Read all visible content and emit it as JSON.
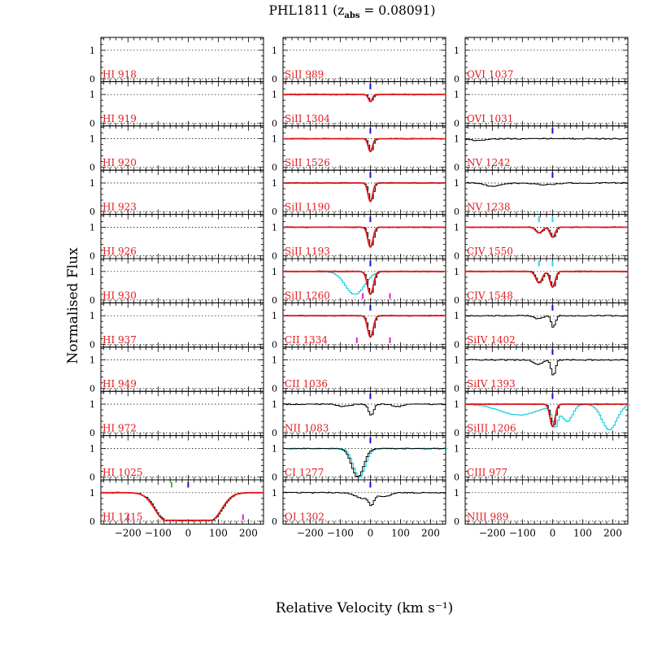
{
  "chart_data": {
    "type": "line",
    "title_prefix": "PHL1811 (z",
    "title_sub": "abs",
    "title_suffix": " = 0.08091)",
    "xlabel": "Relative Velocity (km s⁻¹)",
    "ylabel": "Normalised Flux",
    "xlim": [
      -290,
      250
    ],
    "ylim": [
      -0.1,
      1.45
    ],
    "x_ticks": [
      -200,
      -100,
      0,
      100,
      200
    ],
    "y_ticks": [
      0,
      1
    ],
    "colors": {
      "label": "#e41a1c",
      "model": "#e41a1c",
      "spectrum": "#000000",
      "blend": "#00c8d8",
      "marker_main": "#1414d2",
      "marker_alt": "#e020d0",
      "marker_green": "#20d020",
      "marker_cyan": "#20d8e8"
    },
    "panels": [
      [
        {
          "label": "HI 918",
          "spectrum": false
        },
        {
          "label": "HI 919",
          "spectrum": false
        },
        {
          "label": "HI 920",
          "spectrum": false
        },
        {
          "label": "HI 923",
          "spectrum": false
        },
        {
          "label": "HI 926",
          "spectrum": false
        },
        {
          "label": "HI 930",
          "spectrum": false
        },
        {
          "label": "HI 937",
          "spectrum": false
        },
        {
          "label": "HI 949",
          "spectrum": false
        },
        {
          "label": "HI 972",
          "spectrum": false
        },
        {
          "label": "HI 1025",
          "spectrum": false
        },
        {
          "label": "HI 1215",
          "spectrum": true,
          "model": true,
          "comps": [
            {
              "v": 0,
              "depth": 0.97,
              "width": 50,
              "flat": 75
            }
          ],
          "markers": [
            {
              "v": 0,
              "c": "main",
              "top": true
            },
            {
              "v": -55,
              "c": "green",
              "top": true
            },
            {
              "v": -200,
              "c": "alt",
              "top": false
            },
            {
              "v": 182,
              "c": "alt",
              "top": false
            }
          ]
        }
      ],
      [
        {
          "label": "SiII 989",
          "spectrum": false
        },
        {
          "label": "SiII 1304",
          "spectrum": true,
          "model": true,
          "comps": [
            {
              "v": 0,
              "depth": 0.25,
              "width": 9
            }
          ],
          "markers": [
            {
              "v": 0,
              "c": "main",
              "top": true
            }
          ]
        },
        {
          "label": "SiII 1526",
          "spectrum": true,
          "model": true,
          "comps": [
            {
              "v": 0,
              "depth": 0.45,
              "width": 10
            }
          ],
          "markers": [
            {
              "v": 0,
              "c": "main",
              "top": true
            }
          ]
        },
        {
          "label": "SiII 1190",
          "spectrum": true,
          "model": true,
          "comps": [
            {
              "v": 0,
              "depth": 0.65,
              "width": 11
            }
          ],
          "markers": [
            {
              "v": 0,
              "c": "main",
              "top": true
            }
          ]
        },
        {
          "label": "SiII 1193",
          "spectrum": true,
          "model": true,
          "comps": [
            {
              "v": 0,
              "depth": 0.7,
              "width": 12
            }
          ],
          "markers": [
            {
              "v": 0,
              "c": "main",
              "top": true
            }
          ]
        },
        {
          "label": "SiII 1260",
          "spectrum": true,
          "model": true,
          "comps": [
            {
              "v": 0,
              "depth": 0.8,
              "width": 14
            }
          ],
          "blend": [
            {
              "v": -60,
              "depth": 0.8,
              "width": 45
            }
          ],
          "markers": [
            {
              "v": 0,
              "c": "main",
              "top": true
            },
            {
              "v": -25,
              "c": "alt",
              "top": false
            },
            {
              "v": 65,
              "c": "alt",
              "top": false
            }
          ]
        },
        {
          "label": "CII 1334",
          "spectrum": true,
          "model": true,
          "comps": [
            {
              "v": 0,
              "depth": 0.75,
              "width": 13
            }
          ],
          "markers": [
            {
              "v": 0,
              "c": "main",
              "top": true
            },
            {
              "v": -45,
              "c": "alt",
              "top": false
            },
            {
              "v": 65,
              "c": "alt",
              "top": false
            }
          ]
        },
        {
          "label": "CII 1036",
          "spectrum": false
        },
        {
          "label": "NII 1083",
          "spectrum": true,
          "model": false,
          "comps": [
            {
              "v": 0,
              "depth": 0.4,
              "width": 12
            },
            {
              "v": -90,
              "depth": 0.08,
              "width": 25
            },
            {
              "v": 90,
              "depth": 0.08,
              "width": 25
            }
          ],
          "markers": [
            {
              "v": 0,
              "c": "main",
              "top": true
            }
          ]
        },
        {
          "label": "CI 1277",
          "spectrum": true,
          "model": false,
          "comps": [],
          "blend": [
            {
              "v": -45,
              "depth": 1.0,
              "width": 28
            }
          ],
          "markers": [
            {
              "v": 0,
              "c": "main",
              "top": true
            }
          ]
        },
        {
          "label": "OI 1302",
          "spectrum": true,
          "model": false,
          "comps": [
            {
              "v": 0,
              "depth": 0.4,
              "width": 12
            },
            {
              "v": -30,
              "depth": 0.2,
              "width": 30
            },
            {
              "v": 40,
              "depth": 0.15,
              "width": 30
            }
          ],
          "markers": [
            {
              "v": 0,
              "c": "main",
              "top": true
            }
          ]
        }
      ],
      [
        {
          "label": "OVI 1037",
          "spectrum": false
        },
        {
          "label": "OVI 1031",
          "spectrum": false
        },
        {
          "label": "NV 1242",
          "spectrum": true,
          "model": false,
          "comps": [
            {
              "v": -250,
              "depth": 0.06,
              "width": 40
            }
          ],
          "markers": [
            {
              "v": 0,
              "c": "main",
              "top": true
            }
          ]
        },
        {
          "label": "NV 1238",
          "spectrum": true,
          "model": false,
          "comps": [
            {
              "v": -200,
              "depth": 0.12,
              "width": 35
            },
            {
              "v": -30,
              "depth": 0.06,
              "width": 50
            }
          ],
          "markers": [
            {
              "v": 0,
              "c": "main",
              "top": true
            }
          ]
        },
        {
          "label": "CIV 1550",
          "spectrum": true,
          "model": true,
          "comps": [
            {
              "v": -45,
              "depth": 0.2,
              "width": 15
            },
            {
              "v": 0,
              "depth": 0.35,
              "width": 12
            }
          ],
          "markers": [
            {
              "v": 0,
              "c": "cyan",
              "top": true
            },
            {
              "v": -45,
              "c": "cyan",
              "top": true
            }
          ]
        },
        {
          "label": "CIV 1548",
          "spectrum": true,
          "model": true,
          "comps": [
            {
              "v": -45,
              "depth": 0.4,
              "width": 15
            },
            {
              "v": 0,
              "depth": 0.55,
              "width": 12
            }
          ],
          "markers": [
            {
              "v": 0,
              "c": "cyan",
              "top": true
            },
            {
              "v": -45,
              "c": "cyan",
              "top": true
            }
          ]
        },
        {
          "label": "SiIV 1402",
          "spectrum": true,
          "model": false,
          "comps": [
            {
              "v": 0,
              "depth": 0.4,
              "width": 10
            },
            {
              "v": -50,
              "depth": 0.1,
              "width": 20
            }
          ],
          "markers": [
            {
              "v": 0,
              "c": "main",
              "top": true
            }
          ]
        },
        {
          "label": "SiIV 1393",
          "spectrum": true,
          "model": false,
          "comps": [
            {
              "v": 0,
              "depth": 0.55,
              "width": 10
            },
            {
              "v": -50,
              "depth": 0.15,
              "width": 20
            }
          ],
          "markers": [
            {
              "v": 0,
              "c": "main",
              "top": true
            }
          ]
        },
        {
          "label": "SiIII 1206",
          "spectrum": true,
          "model": true,
          "comps": [
            {
              "v": 0,
              "depth": 0.78,
              "width": 12
            }
          ],
          "blend": [
            {
              "v": -120,
              "depth": 0.38,
              "width": 90
            },
            {
              "v": 0,
              "depth": 0.8,
              "width": 14
            },
            {
              "v": 40,
              "depth": 0.6,
              "width": 25
            },
            {
              "v": 180,
              "depth": 0.9,
              "width": 35
            }
          ],
          "markers": [
            {
              "v": 0,
              "c": "main",
              "top": true
            }
          ]
        },
        {
          "label": "CIII 977",
          "spectrum": false
        },
        {
          "label": "NIII 989",
          "spectrum": false
        }
      ]
    ]
  }
}
